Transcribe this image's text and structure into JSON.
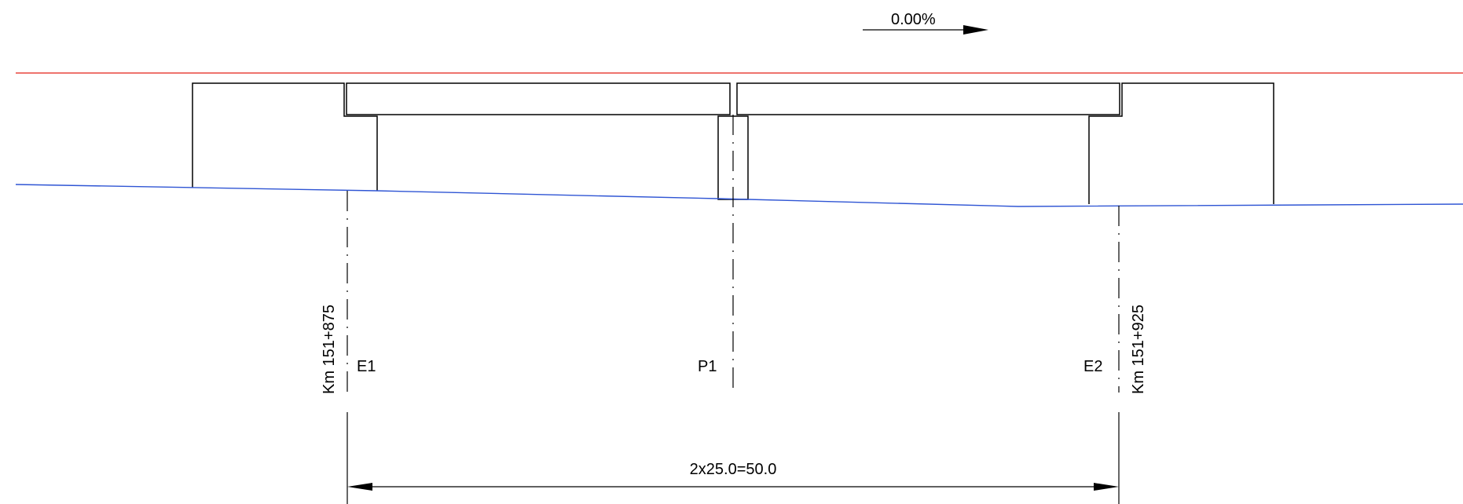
{
  "colors": {
    "profile_line": "#e8473f",
    "ground_line": "#2f55d4",
    "drawing_line": "#000000"
  },
  "slope": {
    "label": "0.00%",
    "arrow_direction": "right"
  },
  "supports": [
    {
      "id": "E1",
      "label": "E1",
      "station": "Km 151+875"
    },
    {
      "id": "P1",
      "label": "P1"
    },
    {
      "id": "E2",
      "label": "E2",
      "station": "Km 151+925"
    }
  ],
  "span_dimension": {
    "label": "2x25.0=50.0"
  }
}
